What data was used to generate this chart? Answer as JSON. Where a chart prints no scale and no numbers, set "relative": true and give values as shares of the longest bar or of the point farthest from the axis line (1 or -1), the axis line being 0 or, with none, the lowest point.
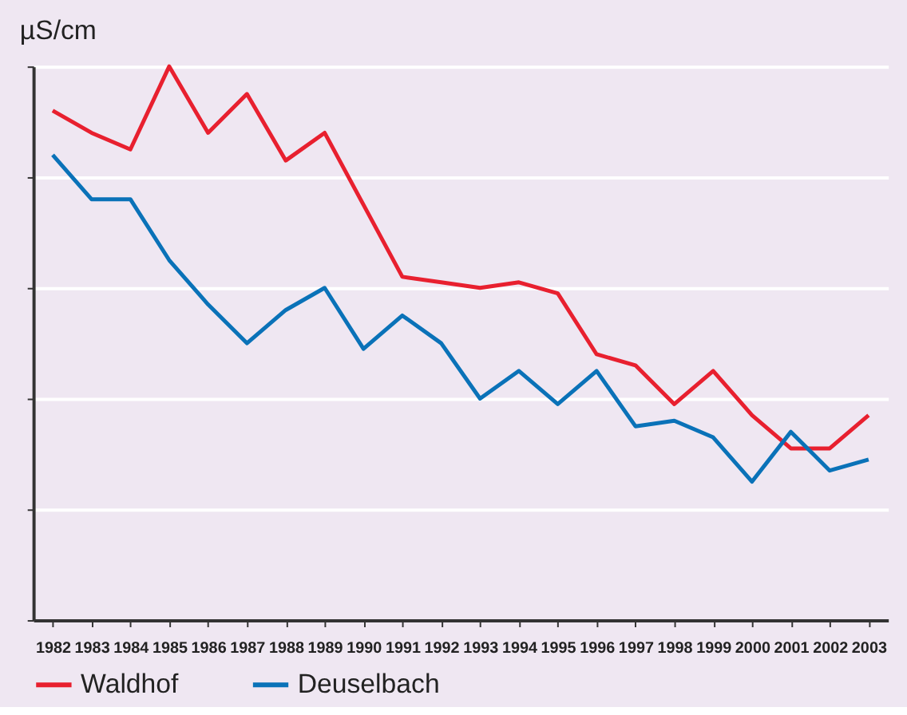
{
  "chart_data": {
    "type": "line",
    "ylabel": "µS/cm",
    "relative": true,
    "grid": "y",
    "legend": "bottom",
    "marker": "none",
    "line_style": "solid",
    "categories": [
      "1982",
      "1983",
      "1984",
      "1985",
      "1986",
      "1987",
      "1988",
      "1989",
      "1990",
      "1991",
      "1992",
      "1993",
      "1994",
      "1995",
      "1996",
      "1997",
      "1998",
      "1999",
      "2000",
      "2001",
      "2002",
      "2003"
    ],
    "series": [
      {
        "name": "Waldhof",
        "color": "#e8202f",
        "values": [
          0.92,
          0.88,
          0.85,
          1.0,
          0.88,
          0.95,
          0.83,
          0.88,
          0.75,
          0.62,
          0.61,
          0.6,
          0.61,
          0.59,
          0.48,
          0.46,
          0.39,
          0.45,
          0.37,
          0.31,
          0.31,
          0.37
        ]
      },
      {
        "name": "Deuselbach",
        "color": "#0a72b8",
        "values": [
          0.84,
          0.76,
          0.76,
          0.65,
          0.57,
          0.5,
          0.56,
          0.6,
          0.49,
          0.55,
          0.5,
          0.4,
          0.45,
          0.39,
          0.45,
          0.35,
          0.36,
          0.33,
          0.25,
          0.34,
          0.27,
          0.29
        ]
      }
    ]
  }
}
